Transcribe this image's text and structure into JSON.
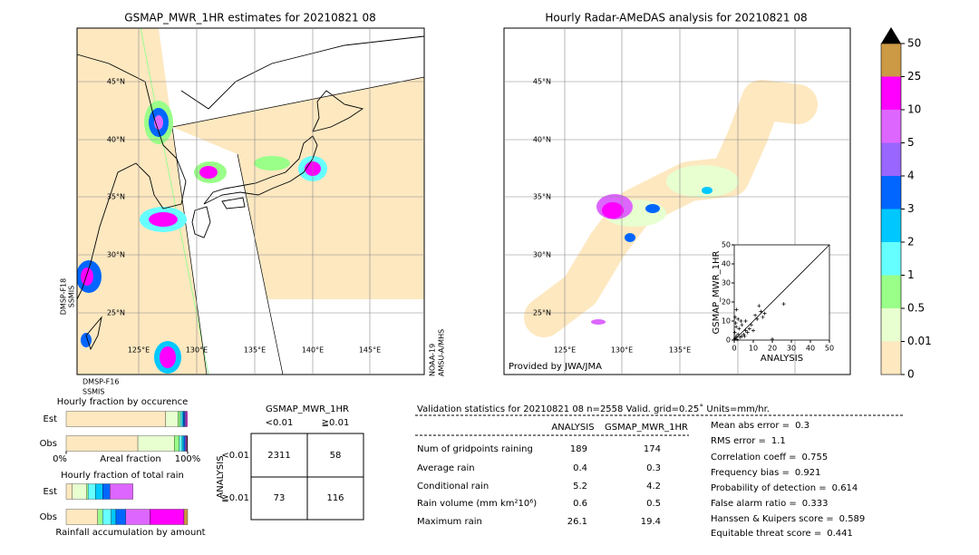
{
  "maps": [
    {
      "title": "GSMAP_MWR_1HR estimates for 20210821 08",
      "lat_labels": [
        "45°N",
        "40°N",
        "35°N",
        "30°N",
        "25°N"
      ],
      "lon_labels": [
        "125°E",
        "130°E",
        "135°E",
        "140°E",
        "145°E"
      ],
      "sensors": [
        "DMSP-F18",
        "SSMIS",
        "DMSP-F16",
        "SSMIS",
        "NOAA-19",
        "AMSU-A/MHS"
      ]
    },
    {
      "title": "Hourly Radar-AMeDAS analysis for 20210821 08",
      "lat_labels": [
        "45°N",
        "40°N",
        "35°N",
        "30°N",
        "25°N"
      ],
      "lon_labels": [
        "125°E",
        "130°E",
        "135°E"
      ],
      "credit": "Provided by JWA/JMA"
    }
  ],
  "colorbar": {
    "ticks": [
      0,
      0.01,
      0.5,
      1,
      2,
      3,
      4,
      5,
      10,
      25,
      50
    ],
    "colors": [
      "#fde8c0",
      "#e8ffd0",
      "#99ff88",
      "#66ffff",
      "#00c8ff",
      "#0066ff",
      "#9966ff",
      "#dd66ff",
      "#ff00ff",
      "#cc9944"
    ]
  },
  "chart_data": [
    {
      "type": "bar",
      "horizontal": true,
      "stacked": true,
      "title": "Hourly fraction by occurence",
      "categories": [
        "Est",
        "Obs"
      ],
      "xlabel": "Areal fraction",
      "xlim": [
        0,
        100
      ],
      "xticks": [
        {
          "value": 0,
          "label": "0%"
        },
        {
          "value": 100,
          "label": "100%"
        }
      ],
      "series": [
        {
          "color": "#fde8c0",
          "values": [
            82,
            59
          ]
        },
        {
          "color": "#e8ffd0",
          "values": [
            10,
            30
          ]
        },
        {
          "color": "#99ff88",
          "values": [
            2,
            4
          ]
        },
        {
          "color": "#66ffff",
          "values": [
            1.5,
            2.5
          ]
        },
        {
          "color": "#00c8ff",
          "values": [
            1,
            1.5
          ]
        },
        {
          "color": "#0066ff",
          "values": [
            1,
            1
          ]
        },
        {
          "color": "#9966ff",
          "values": [
            0.8,
            0.8
          ]
        },
        {
          "color": "#dd66ff",
          "values": [
            0.8,
            0.6
          ]
        },
        {
          "color": "#ff00ff",
          "values": [
            0.6,
            0.4
          ]
        },
        {
          "color": "#cc9944",
          "values": [
            0,
            0.2
          ]
        }
      ]
    },
    {
      "type": "bar",
      "horizontal": true,
      "stacked": true,
      "title": "Hourly fraction of total rain",
      "categories": [
        "Est",
        "Obs"
      ],
      "xlabel": "Rainfall accumulation by amount",
      "xlim": [
        0,
        100
      ],
      "series": [
        {
          "color": "#fde8c0",
          "values": [
            5,
            26
          ]
        },
        {
          "color": "#e8ffd0",
          "values": [
            12,
            0
          ]
        },
        {
          "color": "#99ff88",
          "values": [
            1,
            4
          ]
        },
        {
          "color": "#66ffff",
          "values": [
            6,
            7
          ]
        },
        {
          "color": "#00c8ff",
          "values": [
            6,
            4
          ]
        },
        {
          "color": "#0066ff",
          "values": [
            6,
            8
          ]
        },
        {
          "color": "#9966ff",
          "values": [
            0,
            0
          ]
        },
        {
          "color": "#dd66ff",
          "values": [
            19,
            20
          ]
        },
        {
          "color": "#ff00ff",
          "values": [
            0,
            28
          ]
        },
        {
          "color": "#cc9944",
          "values": [
            0,
            3
          ]
        }
      ]
    },
    {
      "type": "scatter",
      "xlabel": "ANALYSIS",
      "ylabel": "GSMAP_MWR_1HR",
      "xlim": [
        0,
        50
      ],
      "ylim": [
        0,
        50
      ],
      "xticks": [
        0,
        10,
        20,
        30,
        40,
        50
      ],
      "yticks": [
        0,
        10,
        20,
        30,
        40,
        50
      ],
      "color": "#000000",
      "x": [
        0.2,
        0.5,
        1,
        1.5,
        2,
        0.3,
        3,
        4,
        2.5,
        5,
        6,
        1,
        0.8,
        7,
        8,
        3.5,
        9,
        10,
        12,
        14,
        15,
        16,
        11,
        13,
        20,
        0.5,
        2,
        4,
        6,
        5.5,
        1.2,
        26
      ],
      "y": [
        0.5,
        1,
        2,
        0.3,
        3,
        4,
        1.5,
        2,
        6,
        3,
        5,
        7,
        9,
        4,
        6,
        10,
        8,
        5,
        11,
        15,
        12,
        14,
        13,
        18,
        0.5,
        12,
        11,
        8,
        10,
        2,
        16,
        19
      ]
    }
  ],
  "contingency": {
    "title": "GSMAP_MWR_1HR",
    "columns": [
      "<0.01",
      "≧0.01"
    ],
    "row_title": "ANALYSIS",
    "rows": [
      "<0.01",
      "≧0.01"
    ],
    "cells": [
      [
        2311,
        58
      ],
      [
        73,
        116
      ]
    ]
  },
  "validation": {
    "title": "Validation statistics for 20210821 08  n=2558 Valid. grid=0.25˚ Units=mm/hr.",
    "columns": [
      "ANALYSIS",
      "GSMAP_MWR_1HR"
    ],
    "rows": [
      {
        "label": "Num of gridpoints raining",
        "values": [
          189,
          174
        ]
      },
      {
        "label": "Average rain",
        "values": [
          0.4,
          0.3
        ]
      },
      {
        "label": "Conditional rain",
        "values": [
          5.2,
          4.2
        ]
      },
      {
        "label": "Rain volume (mm km²10⁶)",
        "values": [
          0.6,
          0.5
        ]
      },
      {
        "label": "Maximum rain",
        "values": [
          26.1,
          19.4
        ]
      }
    ],
    "scores": [
      {
        "label": "Mean abs error =",
        "value": 0.3
      },
      {
        "label": "RMS error =",
        "value": 1.1
      },
      {
        "label": "Correlation coeff =",
        "value": 0.755
      },
      {
        "label": "Frequency bias =",
        "value": 0.921
      },
      {
        "label": "Probability of detection =",
        "value": 0.614
      },
      {
        "label": "False alarm ratio =",
        "value": 0.333
      },
      {
        "label": "Hanssen & Kuipers score =",
        "value": 0.589
      },
      {
        "label": "Equitable threat score =",
        "value": 0.441
      }
    ]
  }
}
